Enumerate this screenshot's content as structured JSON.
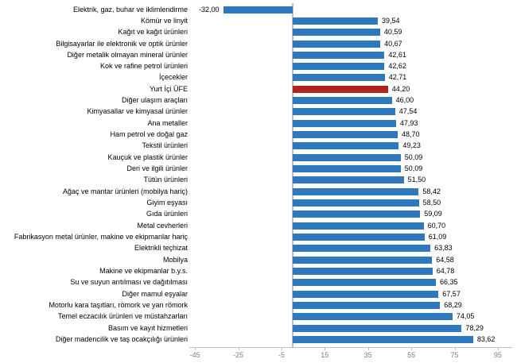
{
  "chart_data": {
    "type": "bar",
    "orientation": "horizontal",
    "title": "",
    "xlabel": "",
    "ylabel": "",
    "xlim": [
      -45,
      95
    ],
    "x_ticks": [
      -45,
      -25,
      -5,
      15,
      35,
      55,
      75,
      95
    ],
    "x_tick_labels": [
      "-45",
      "-25",
      "-5",
      "15",
      "35",
      "55",
      "75",
      "95"
    ],
    "grid": false,
    "legend": "none",
    "bar_color": "#2e79bd",
    "highlight_color": "#b0231e",
    "highlight_index": 7,
    "axis_color": "#bfbfbf",
    "tick_text_color": "#808080",
    "label_text_color": "#000000",
    "categories": [
      "Elektrik, gaz, buhar ve iklimlendirme",
      "Kömür ve linyit",
      "Kağıt ve kağıt ürünleri",
      "Bilgisayarlar ile elektronik ve optik ürünler",
      "Diğer metalik olmayan mineral ürünler",
      "Kok ve rafine petrol ürünleri",
      "İçecekler",
      "Yurt İçi ÜFE",
      "Diğer ulaşım araçları",
      "Kimyasallar ve kimyasal ürünler",
      "Ana metaller",
      "Ham petrol ve doğal gaz",
      "Tekstil ürünleri",
      "Kauçuk ve plastik ürünler",
      "Deri ve ilgili ürünler",
      "Tütün ürünleri",
      "Ağaç ve mantar ürünleri (mobilya hariç)",
      "Giyim eşyası",
      "Gıda ürünleri",
      "Metal cevherleri",
      "Fabrikasyon metal ürünler, makine ve ekipmanlar hariç",
      "Elektrikli teçhizat",
      "Mobilya",
      "Makine ve ekipmanlar b.y.s.",
      "Su ve suyun arıtılması ve dağıtılması",
      "Diğer mamul eşyalar",
      "Motorlu kara taşıtları, römork ve yan römork",
      "Temel eczacılık ürünleri ve müstahzarları",
      "Basım ve kayıt hizmetleri",
      "Diğer madencilik ve taş ocakçılığı ürünleri"
    ],
    "values": [
      -32.0,
      39.54,
      40.59,
      40.67,
      42.61,
      42.62,
      42.71,
      44.2,
      46.0,
      47.54,
      47.93,
      48.7,
      49.23,
      50.09,
      50.09,
      51.5,
      58.42,
      58.5,
      59.09,
      60.7,
      61.09,
      63.83,
      64.58,
      64.78,
      66.35,
      67.57,
      68.29,
      74.05,
      78.29,
      83.62
    ],
    "value_labels": [
      "-32,00",
      "39,54",
      "40,59",
      "40,67",
      "42,61",
      "42,62",
      "42,71",
      "44,20",
      "46,00",
      "47,54",
      "47,93",
      "48,70",
      "49,23",
      "50,09",
      "50,09",
      "51,50",
      "58,42",
      "58,50",
      "59,09",
      "60,70",
      "61,09",
      "63,83",
      "64,58",
      "64,78",
      "66,35",
      "67,57",
      "68,29",
      "74,05",
      "78,29",
      "83,62"
    ]
  }
}
